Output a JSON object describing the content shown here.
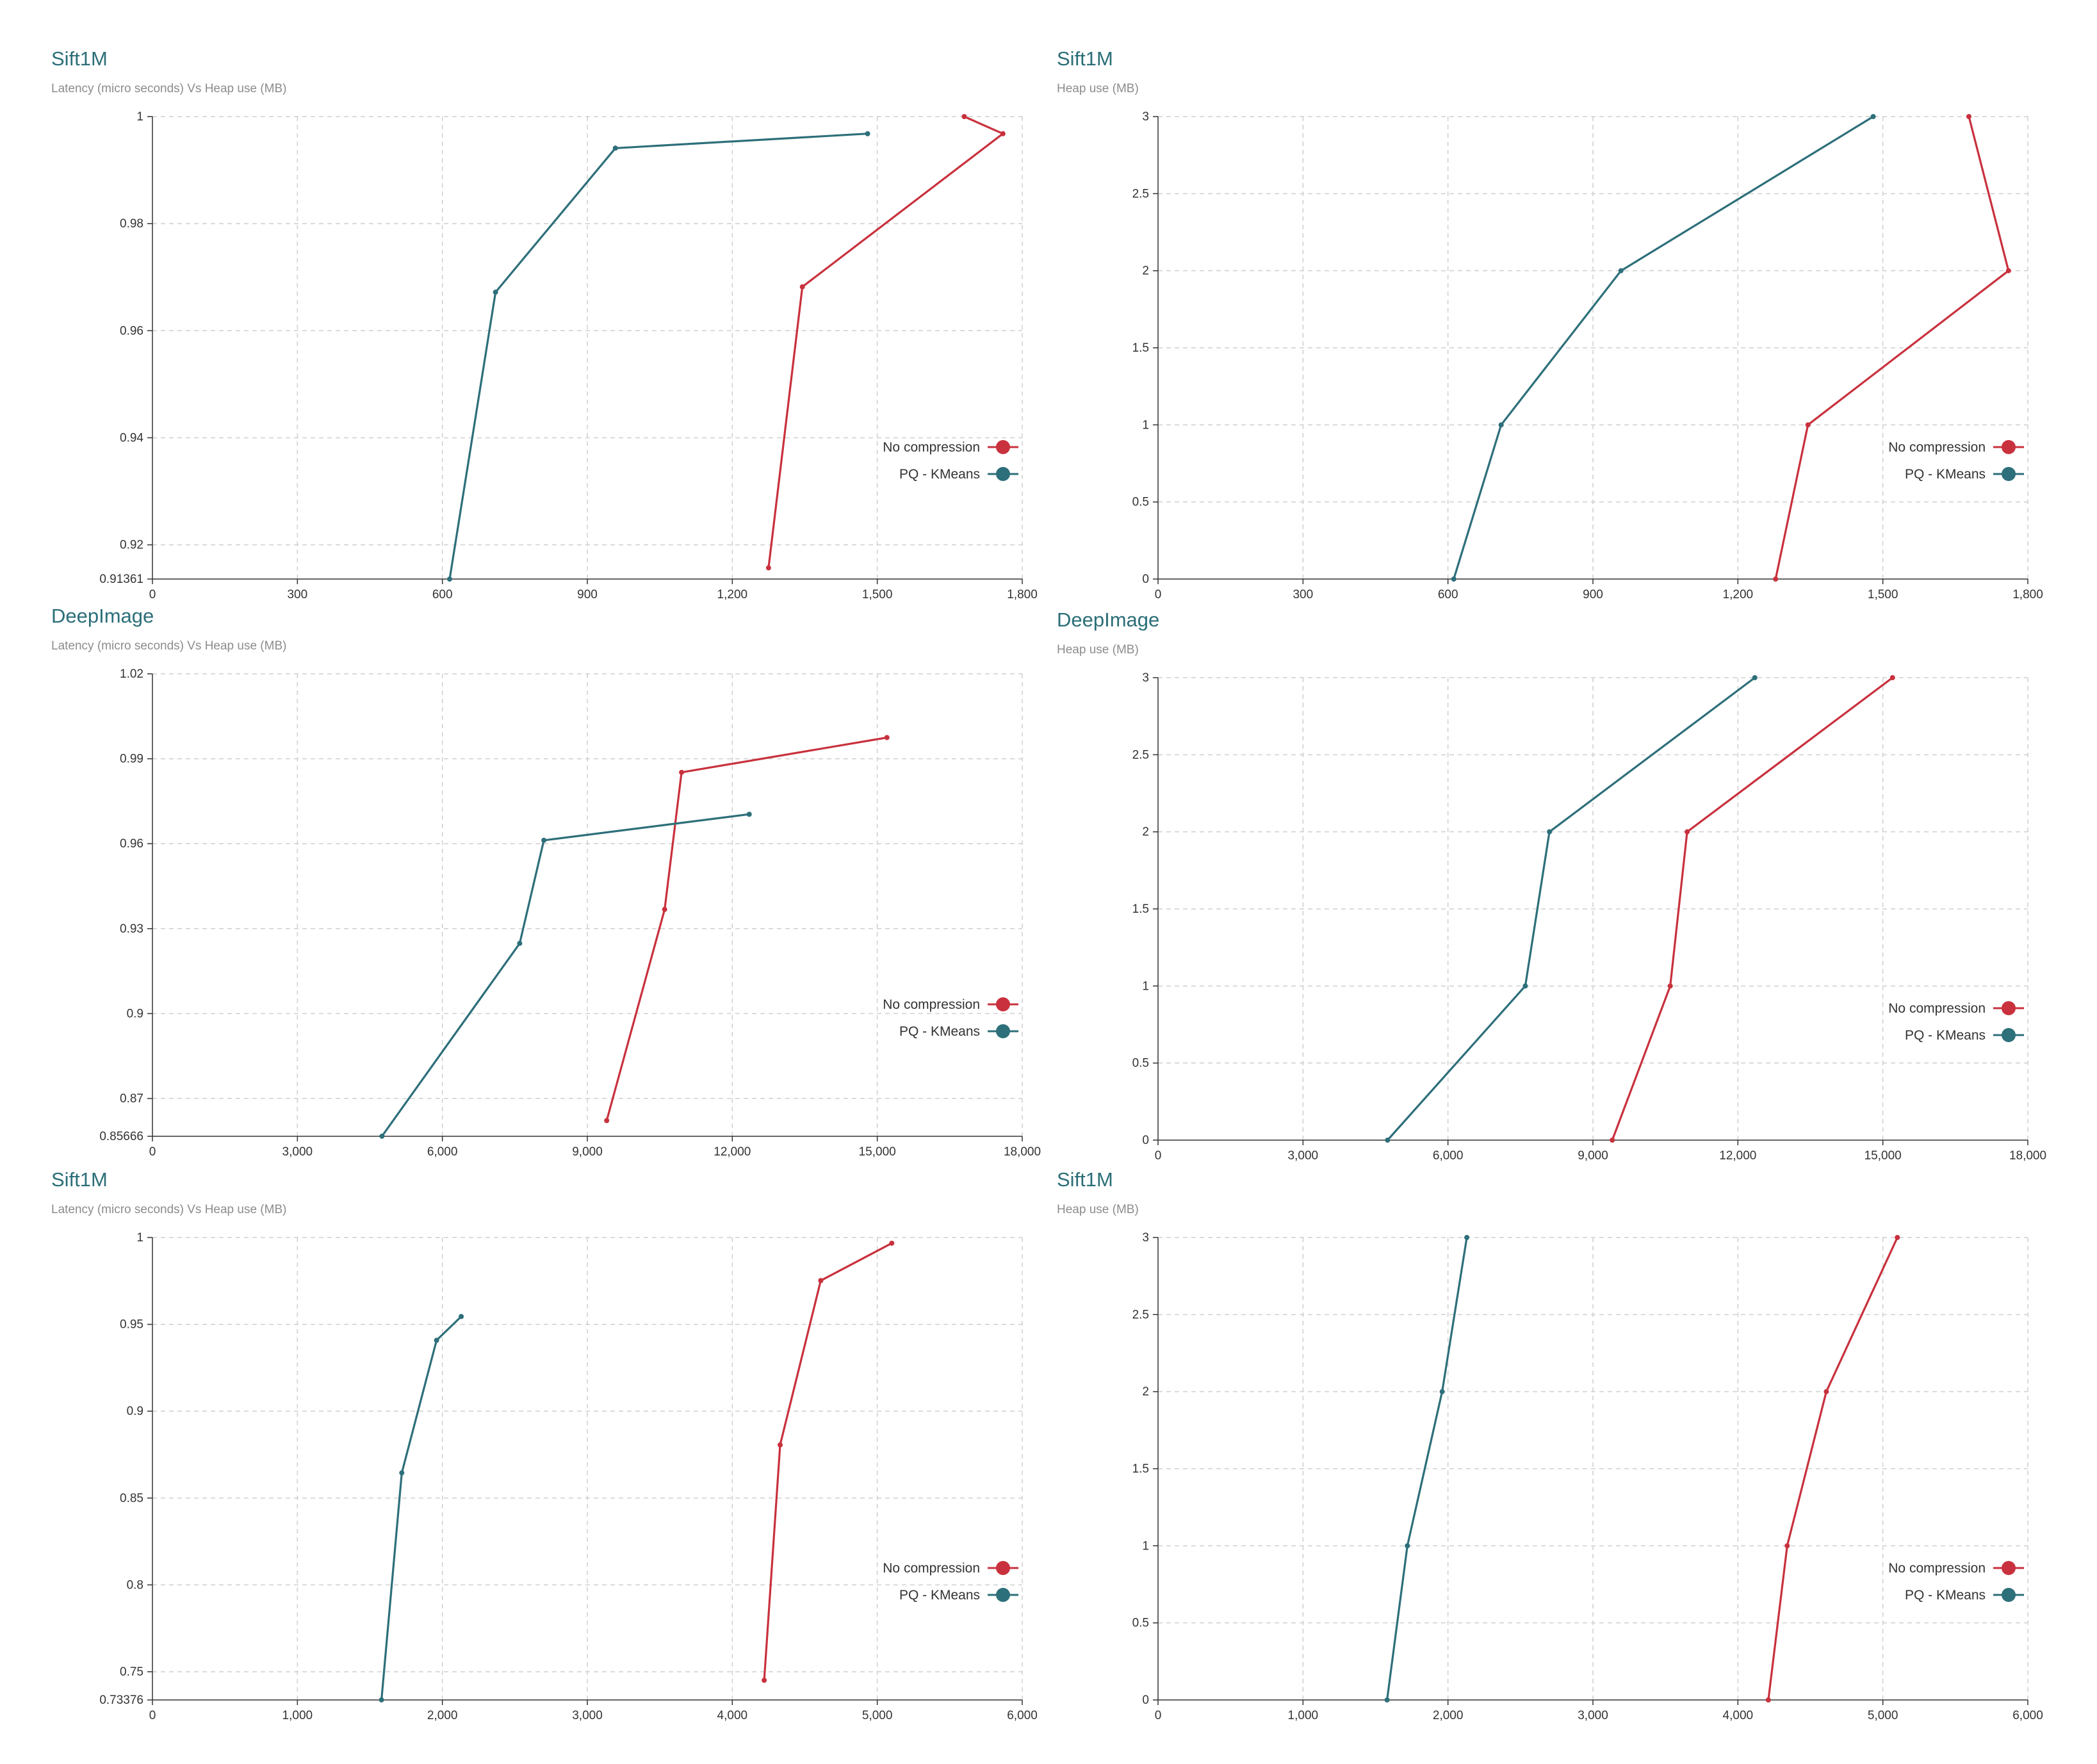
{
  "colors": {
    "red": "#c8313d",
    "teal": "#2d6f7a"
  },
  "legend": {
    "no_compression": "No compression",
    "pq_kmeans": "PQ - KMeans"
  },
  "chart_data": [
    {
      "type": "line",
      "title": "Sift1M",
      "subtitle": "Latency (micro seconds) Vs Heap use (MB)",
      "xlim": [
        0,
        1800
      ],
      "xticks": [
        0,
        300,
        600,
        900,
        1200,
        1500,
        1800
      ],
      "xtick_labels": [
        "0",
        "300",
        "600",
        "900",
        "1,200",
        "1,500",
        "1,800"
      ],
      "ylim": [
        0.91361,
        1
      ],
      "yticks": [
        0.91361,
        0.92,
        0.94,
        0.96,
        0.98,
        1
      ],
      "ytick_labels": [
        "0.91361",
        "0.92",
        "0.94",
        "0.96",
        "0.98",
        "1"
      ],
      "legend_position": "bottom-right",
      "series": [
        {
          "name": "No compression",
          "color_key": "red",
          "x": [
            1275,
            1345,
            1760,
            1680
          ],
          "y": [
            0.9157,
            0.9682,
            0.9968,
            1.0
          ]
        },
        {
          "name": "PQ - KMeans",
          "color_key": "teal",
          "x": [
            615,
            710,
            958,
            1480
          ],
          "y": [
            0.9136,
            0.9672,
            0.9941,
            0.9968
          ]
        }
      ]
    },
    {
      "type": "line",
      "title": "Sift1M",
      "subtitle": "Heap use (MB)",
      "xlim": [
        0,
        1800
      ],
      "xticks": [
        0,
        300,
        600,
        900,
        1200,
        1500,
        1800
      ],
      "xtick_labels": [
        "0",
        "300",
        "600",
        "900",
        "1,200",
        "1,500",
        "1,800"
      ],
      "ylim": [
        0,
        3
      ],
      "yticks": [
        0,
        0.5,
        1,
        1.5,
        2,
        2.5,
        3
      ],
      "ytick_labels": [
        "0",
        "0.5",
        "1",
        "1.5",
        "2",
        "2.5",
        "3"
      ],
      "legend_position": "bottom-right",
      "series": [
        {
          "name": "No compression",
          "color_key": "red",
          "x": [
            1278,
            1345,
            1760,
            1678
          ],
          "y": [
            0,
            1,
            2,
            3
          ]
        },
        {
          "name": "PQ - KMeans",
          "color_key": "teal",
          "x": [
            612,
            710,
            958,
            1480
          ],
          "y": [
            0,
            1,
            2,
            3
          ]
        }
      ]
    },
    {
      "type": "line",
      "title": "DeepImage",
      "subtitle": "Latency (micro seconds) Vs Heap use (MB)",
      "xlim": [
        0,
        18000
      ],
      "xticks": [
        0,
        3000,
        6000,
        9000,
        12000,
        15000,
        18000
      ],
      "xtick_labels": [
        "0",
        "3,000",
        "6,000",
        "9,000",
        "12,000",
        "15,000",
        "18,000"
      ],
      "ylim": [
        0.85666,
        1.02
      ],
      "yticks": [
        0.85666,
        0.87,
        0.9,
        0.93,
        0.96,
        0.99,
        1.02
      ],
      "ytick_labels": [
        "0.85666",
        "0.87",
        "0.9",
        "0.93",
        "0.96",
        "0.99",
        "1.02"
      ],
      "legend_position": "bottom-right",
      "series": [
        {
          "name": "No compression",
          "color_key": "red",
          "x": [
            9400,
            10600,
            10950,
            15200
          ],
          "y": [
            0.8622,
            0.9368,
            0.9852,
            0.9975
          ]
        },
        {
          "name": "PQ - KMeans",
          "color_key": "teal",
          "x": [
            4750,
            7600,
            8100,
            12350
          ],
          "y": [
            0.8567,
            0.9248,
            0.9612,
            0.9704
          ]
        }
      ]
    },
    {
      "type": "line",
      "title": "DeepImage",
      "subtitle": "Heap use (MB)",
      "xlim": [
        0,
        18000
      ],
      "xticks": [
        0,
        3000,
        6000,
        9000,
        12000,
        15000,
        18000
      ],
      "xtick_labels": [
        "0",
        "3,000",
        "6,000",
        "9,000",
        "12,000",
        "15,000",
        "18,000"
      ],
      "ylim": [
        0,
        3
      ],
      "yticks": [
        0,
        0.5,
        1,
        1.5,
        2,
        2.5,
        3
      ],
      "ytick_labels": [
        "0",
        "0.5",
        "1",
        "1.5",
        "2",
        "2.5",
        "3"
      ],
      "legend_position": "bottom-right",
      "series": [
        {
          "name": "No compression",
          "color_key": "red",
          "x": [
            9400,
            10600,
            10950,
            15200
          ],
          "y": [
            0,
            1,
            2,
            3
          ]
        },
        {
          "name": "PQ - KMeans",
          "color_key": "teal",
          "x": [
            4750,
            7600,
            8100,
            12350
          ],
          "y": [
            0,
            1,
            2,
            3
          ]
        }
      ]
    },
    {
      "type": "line",
      "title": "Sift1M",
      "subtitle": "Latency (micro seconds) Vs Heap use (MB)",
      "xlim": [
        0,
        6000
      ],
      "xticks": [
        0,
        1000,
        2000,
        3000,
        4000,
        5000,
        6000
      ],
      "xtick_labels": [
        "0",
        "1,000",
        "2,000",
        "3,000",
        "4,000",
        "5,000",
        "6,000"
      ],
      "ylim": [
        0.73376,
        1
      ],
      "yticks": [
        0.73376,
        0.75,
        0.8,
        0.85,
        0.9,
        0.95,
        1
      ],
      "ytick_labels": [
        "0.73376",
        "0.75",
        "0.8",
        "0.85",
        "0.9",
        "0.95",
        "1"
      ],
      "legend_position": "bottom-right",
      "series": [
        {
          "name": "No compression",
          "color_key": "red",
          "x": [
            4220,
            4330,
            4610,
            5100
          ],
          "y": [
            0.7451,
            0.8806,
            0.9752,
            0.9967
          ]
        },
        {
          "name": "PQ - KMeans",
          "color_key": "teal",
          "x": [
            1580,
            1720,
            1960,
            2130
          ],
          "y": [
            0.7338,
            0.8645,
            0.9408,
            0.9545
          ]
        }
      ]
    },
    {
      "type": "line",
      "title": "Sift1M",
      "subtitle": "Heap use (MB)",
      "xlim": [
        0,
        6000
      ],
      "xticks": [
        0,
        1000,
        2000,
        3000,
        4000,
        5000,
        6000
      ],
      "xtick_labels": [
        "0",
        "1,000",
        "2,000",
        "3,000",
        "4,000",
        "5,000",
        "6,000"
      ],
      "ylim": [
        0,
        3
      ],
      "yticks": [
        0,
        0.5,
        1,
        1.5,
        2,
        2.5,
        3
      ],
      "ytick_labels": [
        "0",
        "0.5",
        "1",
        "1.5",
        "2",
        "2.5",
        "3"
      ],
      "legend_position": "bottom-right",
      "series": [
        {
          "name": "No compression",
          "color_key": "red",
          "x": [
            4210,
            4340,
            4610,
            5100
          ],
          "y": [
            0,
            1,
            2,
            3
          ]
        },
        {
          "name": "PQ - KMeans",
          "color_key": "teal",
          "x": [
            1580,
            1720,
            1960,
            2130
          ],
          "y": [
            0,
            1,
            2,
            3
          ]
        }
      ]
    }
  ]
}
